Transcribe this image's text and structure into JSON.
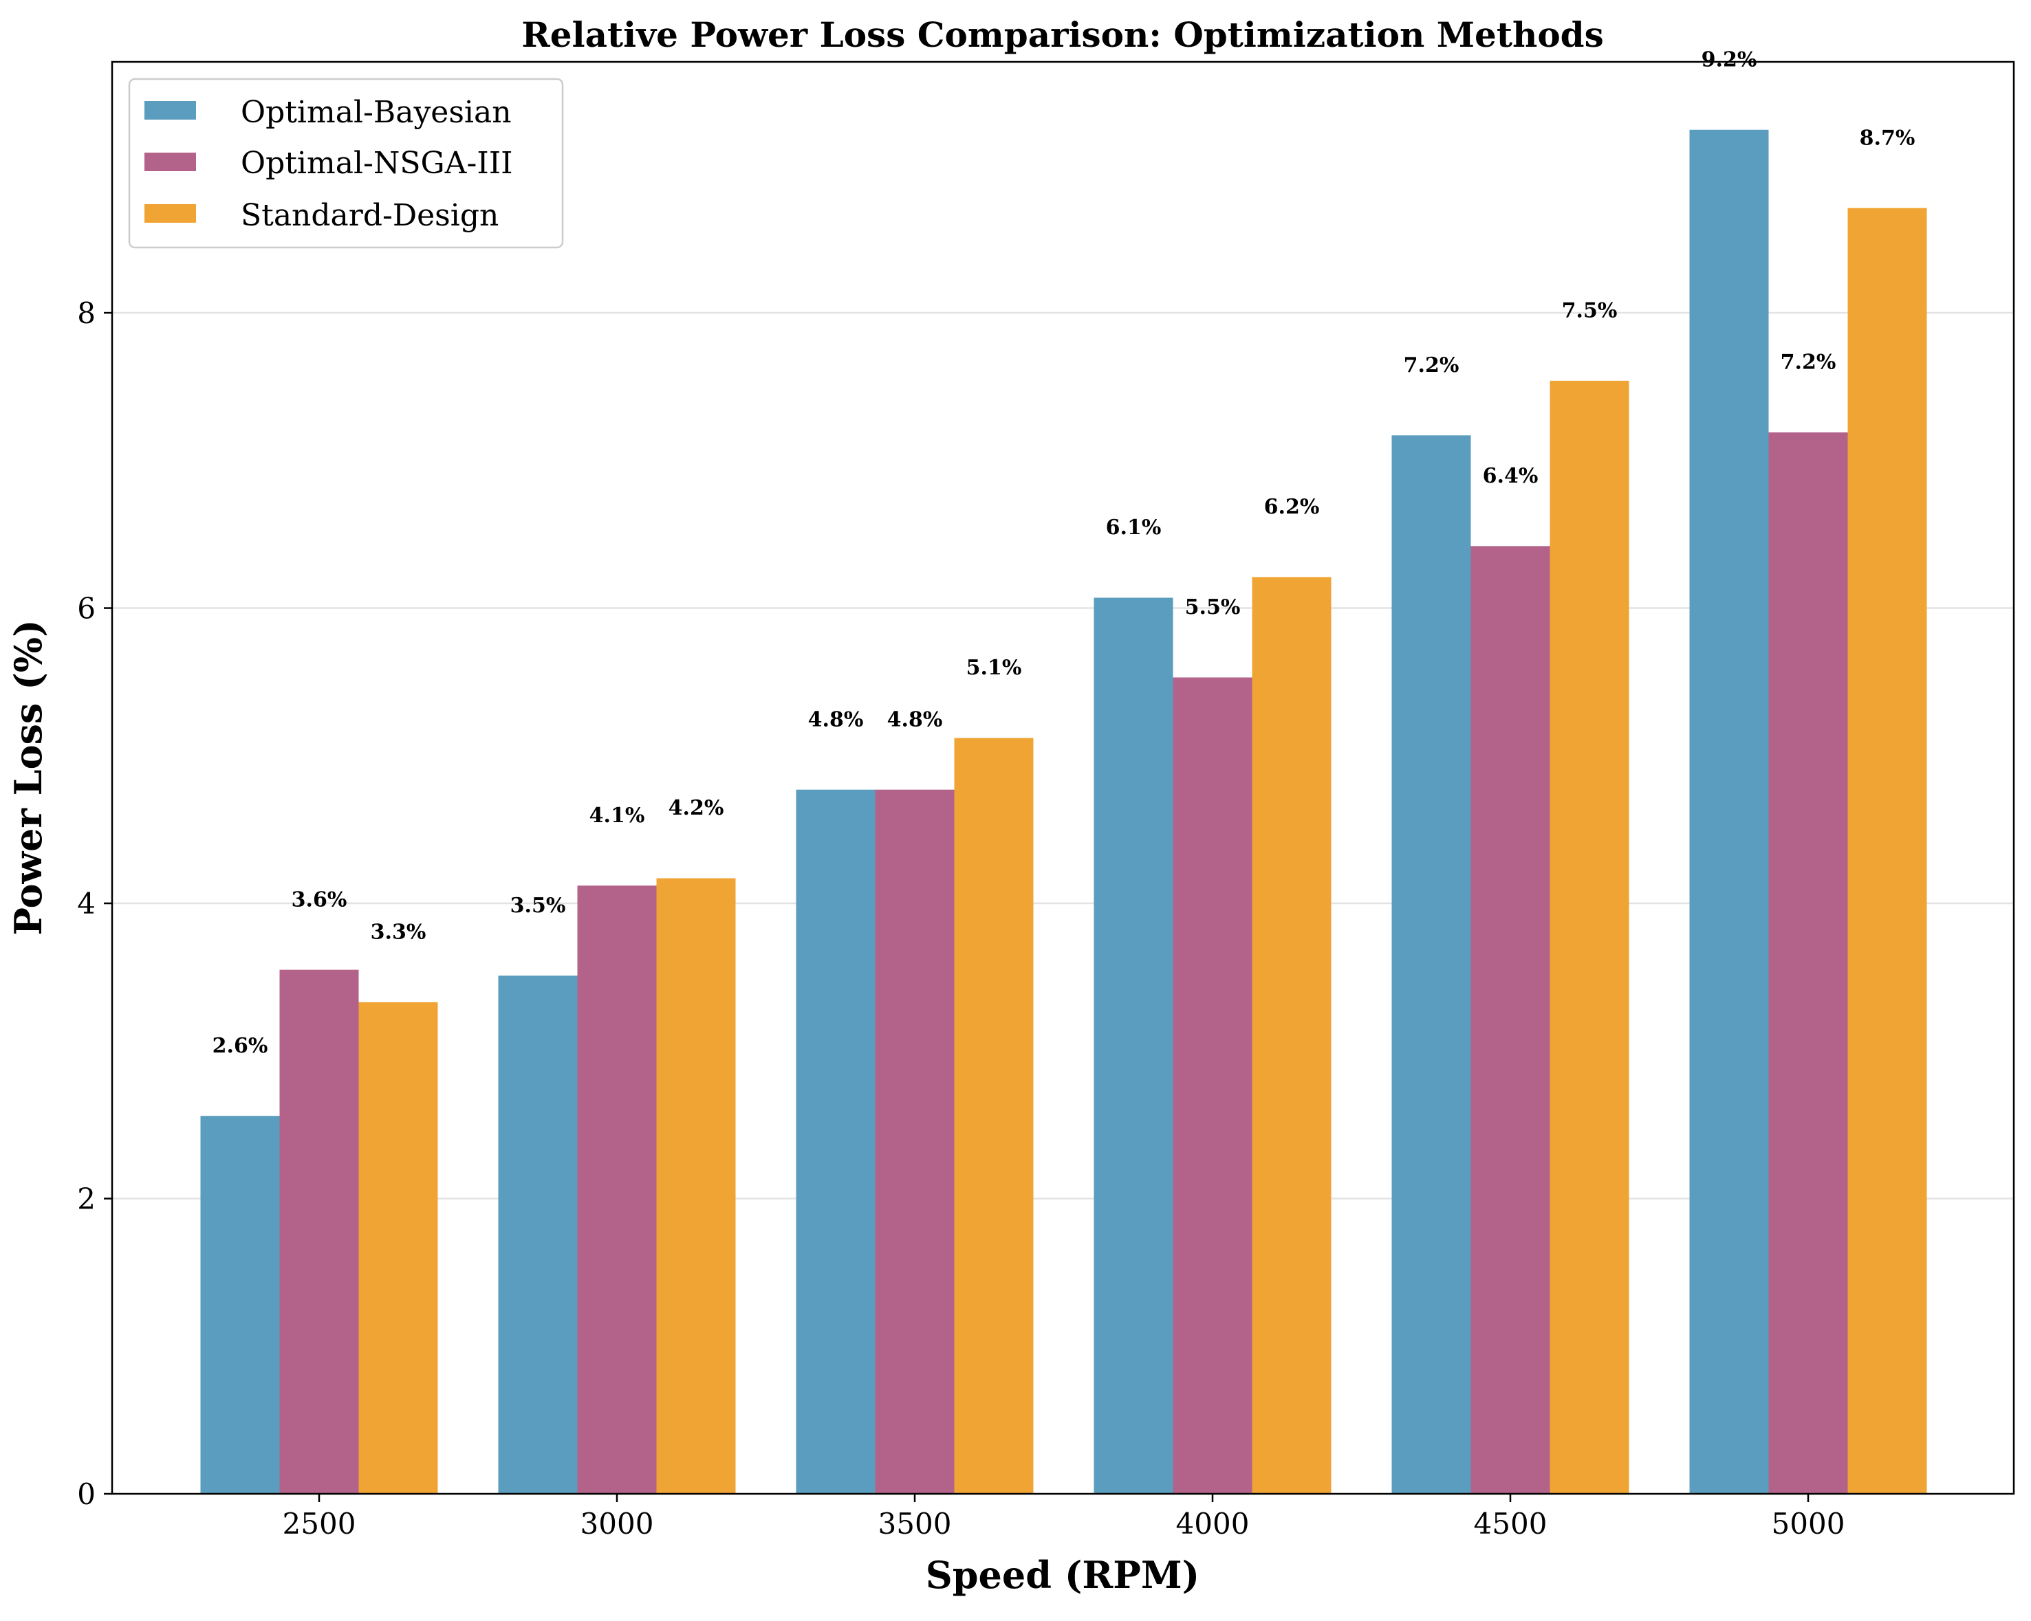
{
  "chart_data": {
    "type": "bar",
    "title": "Relative Power Loss Comparison: Optimization Methods",
    "xlabel": "Speed (RPM)",
    "ylabel": "Power Loss (%)",
    "categories": [
      "2500",
      "3000",
      "3500",
      "4000",
      "4500",
      "5000"
    ],
    "series": [
      {
        "name": "Optimal-Bayesian",
        "color": "#5a9dbe",
        "values": [
          2.56,
          3.51,
          4.77,
          6.07,
          7.17,
          9.24
        ],
        "labels": [
          "2.6%",
          "3.5%",
          "4.8%",
          "6.1%",
          "7.2%",
          "9.2%"
        ]
      },
      {
        "name": "Optimal-NSGA-III",
        "color": "#b3628a",
        "values": [
          3.55,
          4.12,
          4.77,
          5.53,
          6.42,
          7.19
        ],
        "labels": [
          "3.6%",
          "4.1%",
          "4.8%",
          "5.5%",
          "6.4%",
          "7.2%"
        ]
      },
      {
        "name": "Standard-Design",
        "color": "#f0a434",
        "values": [
          3.33,
          4.17,
          5.12,
          6.21,
          7.54,
          8.71
        ],
        "labels": [
          "3.3%",
          "4.2%",
          "5.1%",
          "6.2%",
          "7.5%",
          "8.7%"
        ]
      }
    ],
    "ylim": [
      0,
      9.7
    ],
    "yticks": [
      "0",
      "2",
      "4",
      "6",
      "8"
    ],
    "grid": "horizontal",
    "legend_position": "upper-left"
  }
}
